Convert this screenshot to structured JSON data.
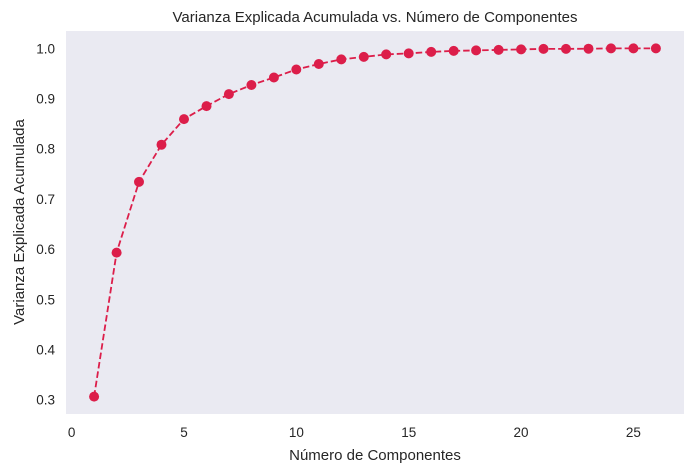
{
  "chart_data": {
    "type": "line",
    "title": "Varianza Explicada Acumulada vs. Número de Componentes",
    "xlabel": "Número de Componentes",
    "ylabel": "Varianza Explicada Acumulada",
    "x": [
      1,
      2,
      3,
      4,
      5,
      6,
      7,
      8,
      9,
      10,
      11,
      12,
      13,
      14,
      15,
      16,
      17,
      18,
      19,
      20,
      21,
      22,
      23,
      24,
      25,
      26
    ],
    "series": [
      {
        "name": "Varianza Explicada Acumulada",
        "values": [
          0.306,
          0.593,
          0.734,
          0.808,
          0.859,
          0.885,
          0.909,
          0.927,
          0.942,
          0.958,
          0.969,
          0.978,
          0.983,
          0.988,
          0.99,
          0.993,
          0.995,
          0.996,
          0.997,
          0.998,
          0.999,
          0.999,
          0.9995,
          1.0,
          1.0,
          1.0
        ],
        "color": "#DC1E4A",
        "linestyle": "dashed",
        "marker": "circle"
      }
    ],
    "xlim": [
      -0.25,
      27.25
    ],
    "ylim": [
      0.2713,
      1.0347
    ],
    "xticks": [
      0,
      5,
      10,
      15,
      20,
      25
    ],
    "xtick_labels": [
      "0",
      "5",
      "10",
      "15",
      "20",
      "25"
    ],
    "yticks": [
      0.3,
      0.4,
      0.5,
      0.6,
      0.7,
      0.8,
      0.9,
      1.0
    ],
    "ytick_labels": [
      "0.3",
      "0.4",
      "0.5",
      "0.6",
      "0.7",
      "0.8",
      "0.9",
      "1.0"
    ],
    "grid": false,
    "legend": null,
    "background": "#EAEAF2"
  }
}
